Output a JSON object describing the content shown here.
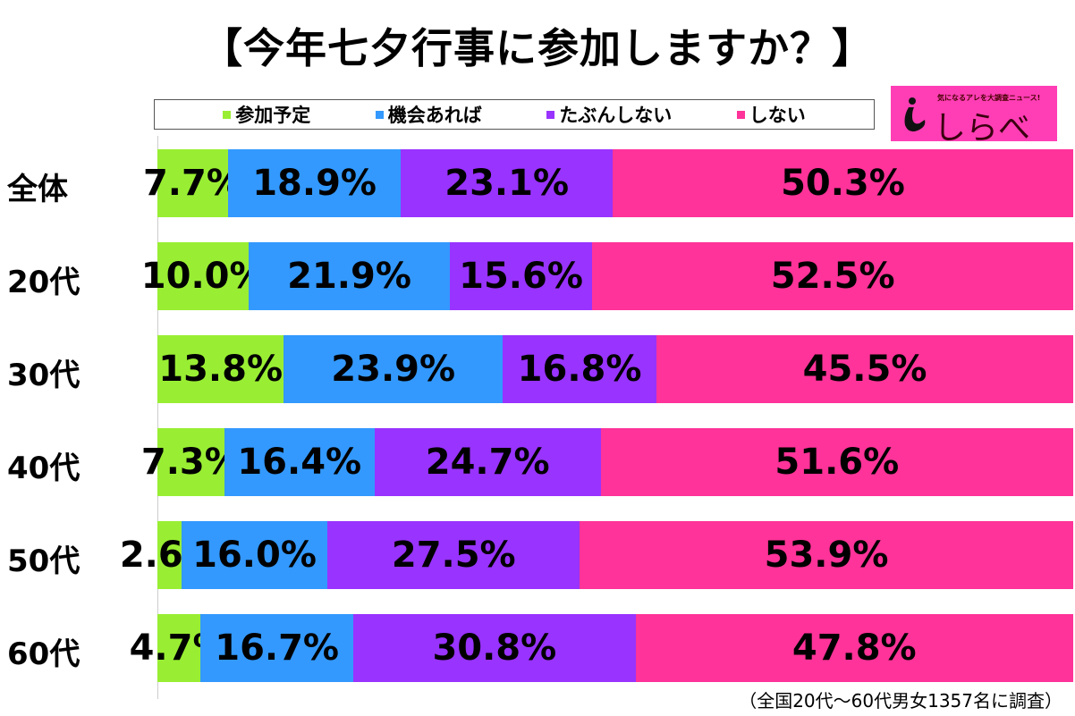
{
  "chart_data": {
    "type": "bar",
    "stacked": true,
    "orientation": "horizontal",
    "title": "【今年七夕行事に参加しますか？】",
    "categories": [
      "全体",
      "20代",
      "30代",
      "40代",
      "50代",
      "60代"
    ],
    "series": [
      {
        "name": "参加予定",
        "color": "#99ee33",
        "values": [
          7.7,
          10.0,
          13.8,
          7.3,
          2.6,
          4.7
        ]
      },
      {
        "name": "機会あれば",
        "color": "#3399ff",
        "values": [
          18.9,
          21.9,
          23.9,
          16.4,
          16.0,
          16.7
        ]
      },
      {
        "name": "たぶんしない",
        "color": "#9933ff",
        "values": [
          23.1,
          15.6,
          16.8,
          24.7,
          27.5,
          30.8
        ]
      },
      {
        "name": "しない",
        "color": "#ff3399",
        "values": [
          50.3,
          52.5,
          45.5,
          51.6,
          53.9,
          47.8
        ]
      }
    ],
    "xlim": [
      0,
      100
    ],
    "legend_position": "top",
    "note": "（全国20代～60代男女1357名に調査）"
  },
  "logo": {
    "tagline": "気になるアレを大調査ニュース!",
    "name": "しらべぇ"
  }
}
